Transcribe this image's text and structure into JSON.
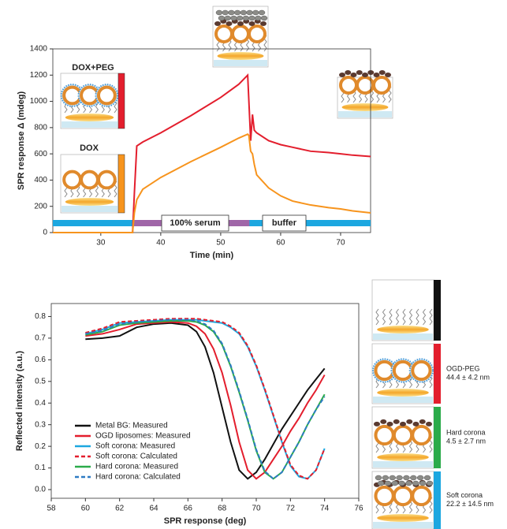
{
  "chart_data": [
    {
      "type": "line",
      "xlabel": "Time (min)",
      "ylabel": "SPR response Δ (mdeg)",
      "xlim": [
        22,
        75
      ],
      "ylim": [
        0,
        1400
      ],
      "xticks": [
        30,
        40,
        50,
        60,
        70
      ],
      "yticks": [
        0,
        200,
        400,
        600,
        800,
        1000,
        1200,
        1400
      ],
      "x": [
        22,
        35.3,
        35.6,
        36,
        37,
        40,
        45,
        50,
        53,
        54.5,
        54.7,
        55,
        55.3,
        55.6,
        56,
        58,
        60,
        62,
        65,
        68,
        70,
        72,
        75
      ],
      "series": [
        {
          "name": "DOX+PEG",
          "color": "#e31e2d",
          "values": [
            0,
            0,
            300,
            660,
            690,
            760,
            890,
            1030,
            1130,
            1200,
            1000,
            700,
            900,
            780,
            760,
            700,
            670,
            650,
            620,
            610,
            600,
            590,
            580
          ]
        },
        {
          "name": "DOX",
          "color": "#f7941d",
          "values": [
            0,
            0,
            150,
            250,
            330,
            420,
            540,
            650,
            720,
            750,
            740,
            620,
            600,
            520,
            440,
            340,
            280,
            240,
            210,
            190,
            180,
            165,
            150
          ]
        }
      ],
      "phases": [
        {
          "label": "100% serum",
          "start": 35.5,
          "end": 54.8,
          "color": "#a066a8"
        },
        {
          "label": "buffer",
          "start": 54.8,
          "end": 75,
          "color": "#1ca7e0"
        }
      ]
    },
    {
      "type": "line",
      "xlabel": "SPR response (deg)",
      "ylabel": "Reflected intensity (a.u.)",
      "xlim": [
        58,
        76
      ],
      "ylim": [
        -0.04,
        0.86
      ],
      "xticks": [
        58,
        60,
        62,
        64,
        66,
        68,
        70,
        72,
        74,
        76
      ],
      "yticks": [
        {
          "value": 0,
          "label": "0.0"
        },
        0.1,
        0.2,
        0.3,
        0.4,
        0.5,
        0.6,
        0.7,
        0.8
      ],
      "legend": "lower left",
      "x": [
        60,
        61,
        62,
        63,
        64,
        65,
        66,
        66.5,
        67,
        67.5,
        68,
        68.5,
        69,
        69.5,
        70,
        70.5,
        71,
        71.5,
        72,
        72.5,
        73,
        73.5,
        74
      ],
      "series": [
        {
          "name": "Metal BG: Measured",
          "color": "#111111",
          "dash": false,
          "values": [
            0.695,
            0.7,
            0.71,
            0.75,
            0.765,
            0.77,
            0.76,
            0.73,
            0.66,
            0.54,
            0.38,
            0.22,
            0.09,
            0.05,
            0.08,
            0.14,
            0.21,
            0.28,
            0.34,
            0.4,
            0.46,
            0.51,
            0.56
          ]
        },
        {
          "name": "OGD liposomes: Measured",
          "color": "#e31e2d",
          "dash": false,
          "values": [
            0.71,
            0.72,
            0.74,
            0.765,
            0.77,
            0.775,
            0.77,
            0.755,
            0.72,
            0.65,
            0.54,
            0.39,
            0.22,
            0.09,
            0.05,
            0.08,
            0.14,
            0.2,
            0.27,
            0.33,
            0.4,
            0.46,
            0.53
          ]
        },
        {
          "name": "Soft corona: Measured",
          "color": "#1ca7e0",
          "dash": false,
          "values": [
            0.72,
            0.74,
            0.77,
            0.775,
            0.78,
            0.785,
            0.785,
            0.785,
            0.78,
            0.775,
            0.77,
            0.75,
            0.72,
            0.66,
            0.57,
            0.46,
            0.34,
            0.22,
            0.11,
            0.06,
            0.05,
            0.09,
            0.19
          ]
        },
        {
          "name": "Soft corona: Calculated",
          "color": "#e31e2d",
          "dash": true,
          "values": [
            0.725,
            0.745,
            0.775,
            0.78,
            0.785,
            0.79,
            0.79,
            0.79,
            0.785,
            0.78,
            0.775,
            0.755,
            0.725,
            0.665,
            0.575,
            0.465,
            0.345,
            0.225,
            0.115,
            0.065,
            0.05,
            0.09,
            0.19
          ]
        },
        {
          "name": "Hard corona: Measured",
          "color": "#2bab4a",
          "dash": false,
          "values": [
            0.715,
            0.73,
            0.76,
            0.77,
            0.775,
            0.78,
            0.78,
            0.775,
            0.76,
            0.73,
            0.67,
            0.57,
            0.45,
            0.32,
            0.18,
            0.08,
            0.05,
            0.08,
            0.15,
            0.22,
            0.3,
            0.37,
            0.44
          ]
        },
        {
          "name": "Hard corona: Calculated",
          "color": "#2e7bc4",
          "dash": true,
          "values": [
            0.72,
            0.735,
            0.765,
            0.775,
            0.78,
            0.785,
            0.785,
            0.78,
            0.765,
            0.735,
            0.675,
            0.575,
            0.455,
            0.325,
            0.185,
            0.085,
            0.05,
            0.08,
            0.15,
            0.22,
            0.3,
            0.37,
            0.43
          ]
        }
      ]
    }
  ],
  "schematics": [
    {
      "label": "OGD-PEG",
      "size": "44.4 ± 4.2 nm"
    },
    {
      "label": "Hard corona",
      "size": "4.5 ± 2.7 nm"
    },
    {
      "label": "Soft corona",
      "size": "22.2 ± 14.5 nm"
    }
  ]
}
